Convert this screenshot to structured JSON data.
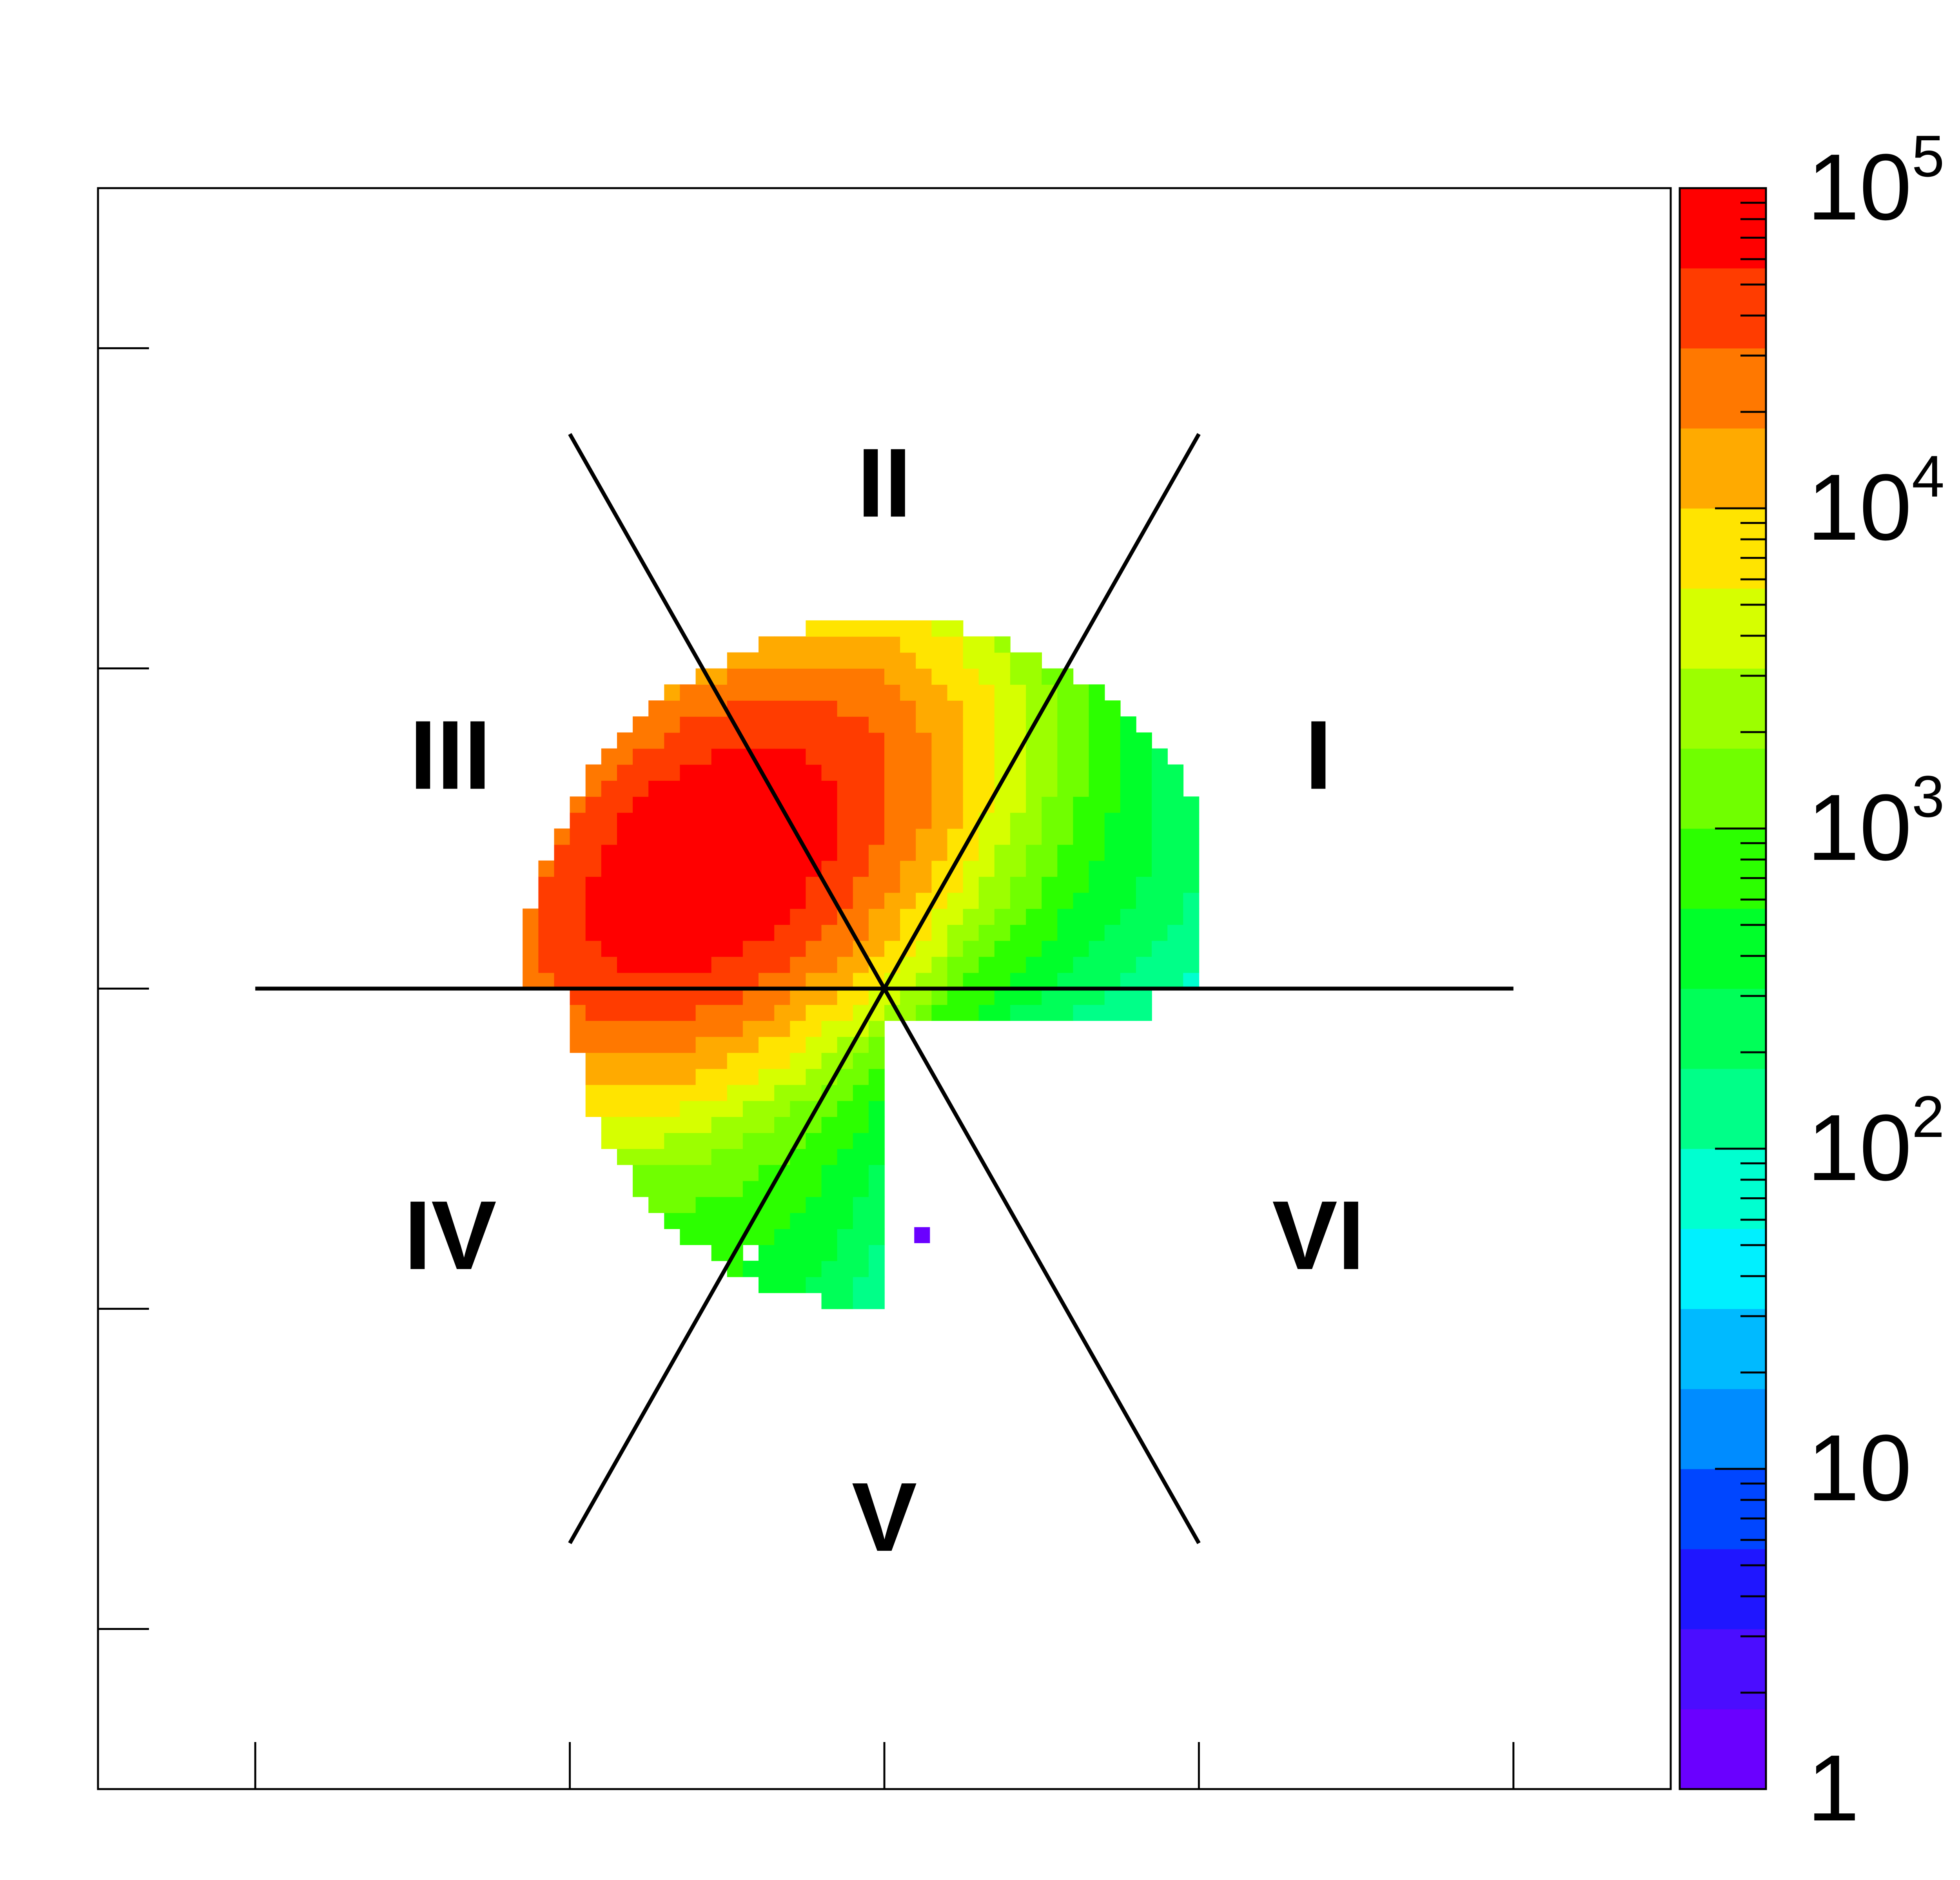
{
  "chart_data": {
    "type": "heatmap",
    "title": "",
    "xlabel": "",
    "ylabel": "",
    "xlim": [
      -2.5,
      2.5
    ],
    "ylim": [
      -2.5,
      2.5
    ],
    "x_tick_values": [
      -2,
      -1,
      0,
      1,
      2
    ],
    "y_tick_values": [
      -2,
      -1,
      0,
      1,
      2
    ],
    "tick_labels_shown": false,
    "z_scale": "log",
    "z_range": [
      1,
      100000
    ],
    "colorbar_labels": [
      {
        "base": "1",
        "exp": ""
      },
      {
        "base": "10",
        "exp": ""
      },
      {
        "base": "10",
        "exp": "2"
      },
      {
        "base": "10",
        "exp": "3"
      },
      {
        "base": "10",
        "exp": "4"
      },
      {
        "base": "10",
        "exp": "5"
      }
    ],
    "colorbar_placement": "right",
    "palette": [
      "#6a00ff",
      "#4b0dff",
      "#1f16ff",
      "#0046ff",
      "#008cff",
      "#00baff",
      "#00f0ff",
      "#00ffd0",
      "#00ff88",
      "#00ff58",
      "#00ff2a",
      "#2cff00",
      "#70ff00",
      "#9cff00",
      "#d6ff00",
      "#ffe400",
      "#ffaa00",
      "#ff7800",
      "#ff3c00",
      "#ff0000"
    ],
    "dividers": {
      "center": [
        0,
        0
      ],
      "angles_deg": [
        0,
        60,
        120
      ],
      "half_length": 2.0
    },
    "sectors": [
      {
        "label": "I",
        "x": 1.38,
        "y": 0.73
      },
      {
        "label": "II",
        "x": 0.0,
        "y": 1.58
      },
      {
        "label": "III",
        "x": -1.38,
        "y": 0.73
      },
      {
        "label": "IV",
        "x": -1.38,
        "y": -0.77
      },
      {
        "label": "V",
        "x": 0.0,
        "y": -1.65
      },
      {
        "label": "VI",
        "x": 1.38,
        "y": -0.77
      }
    ],
    "blobs": [
      {
        "cx": -0.55,
        "cy": 0.4,
        "sx": 0.42,
        "sy": 0.26,
        "rot_deg": 38,
        "peak": 5.0
      },
      {
        "cx": -0.4,
        "cy": 0.6,
        "sx": 0.55,
        "sy": 0.4,
        "rot_deg": 20,
        "peak": 3.2
      },
      {
        "cx": -0.55,
        "cy": -0.3,
        "sx": 0.35,
        "sy": 0.6,
        "rot_deg": -10,
        "peak": 3.0
      },
      {
        "cx": 0.35,
        "cy": 0.4,
        "sx": 0.45,
        "sy": 0.35,
        "rot_deg": 0,
        "peak": 2.6
      },
      {
        "cx": 0.0,
        "cy": 0.85,
        "sx": 0.5,
        "sy": 0.25,
        "rot_deg": 0,
        "peak": 2.2
      }
    ],
    "stray_points": [
      {
        "x": 0.12,
        "y": -0.77,
        "z": 1
      }
    ]
  }
}
